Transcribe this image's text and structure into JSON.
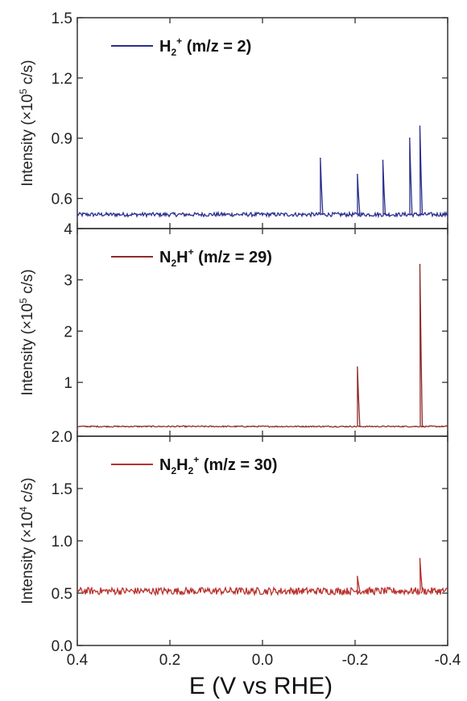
{
  "chart_data": [
    {
      "type": "line",
      "legend": {
        "base": "H",
        "sub": "2",
        "sup": "+",
        "suffix": " (m/z = 2)"
      },
      "ylabel": {
        "pre": "Intensity (×10",
        "sup": "5",
        "post": " c/s)"
      },
      "ylim": [
        0.45,
        1.5
      ],
      "yticks": [
        0.6,
        0.9,
        1.2,
        1.5
      ],
      "ytick_labels": [
        "0.6",
        "0.9",
        "1.2",
        "1.5"
      ],
      "color": "#2b2f8c",
      "baseline": 0.52,
      "noise": 0.01,
      "peaks": [
        {
          "x": -0.125,
          "y": 0.8
        },
        {
          "x": -0.205,
          "y": 0.72
        },
        {
          "x": -0.26,
          "y": 0.79
        },
        {
          "x": -0.318,
          "y": 0.9
        },
        {
          "x": -0.34,
          "y": 0.96
        }
      ]
    },
    {
      "type": "line",
      "legend": {
        "base": "N",
        "sub": "2",
        "mid": "H",
        "sup": "+",
        "suffix": " (m/z = 29)"
      },
      "ylabel": {
        "pre": "Intensity (×10",
        "sup": "5",
        "post": " c/s)"
      },
      "ylim": [
        -0.05,
        4
      ],
      "yticks": [
        1,
        2,
        3,
        4
      ],
      "ytick_labels": [
        "1",
        "2",
        "3",
        "4"
      ],
      "color": "#8e2b2b",
      "baseline": 0.14,
      "noise": 0.012,
      "peaks": [
        {
          "x": -0.205,
          "y": 1.3
        },
        {
          "x": -0.34,
          "y": 3.3
        }
      ]
    },
    {
      "type": "line",
      "legend": {
        "base": "N",
        "sub": "2",
        "mid": "H",
        "sub2": "2",
        "sup": "+",
        "suffix": " (m/z = 30)"
      },
      "ylabel": {
        "pre": "Intensity (×10",
        "sup": "4",
        "post": " c/s)"
      },
      "ylim": [
        0,
        2.0
      ],
      "yticks": [
        0.0,
        0.5,
        1.0,
        1.5,
        2.0
      ],
      "ytick_labels": [
        "0.0",
        "0.5",
        "1.0",
        "1.5",
        "2.0"
      ],
      "color": "#b8322f",
      "baseline": 0.52,
      "noise": 0.035,
      "peaks": [
        {
          "x": -0.205,
          "y": 0.66
        },
        {
          "x": -0.34,
          "y": 0.83
        }
      ]
    }
  ],
  "x_axis": {
    "label": "E (V vs RHE)",
    "xlim": [
      0.4,
      -0.4
    ],
    "ticks": [
      0.4,
      0.2,
      0.0,
      -0.2,
      -0.4
    ],
    "tick_labels": [
      "0.4",
      "0.2",
      "0.0",
      "-0.2",
      "-0.4"
    ]
  }
}
